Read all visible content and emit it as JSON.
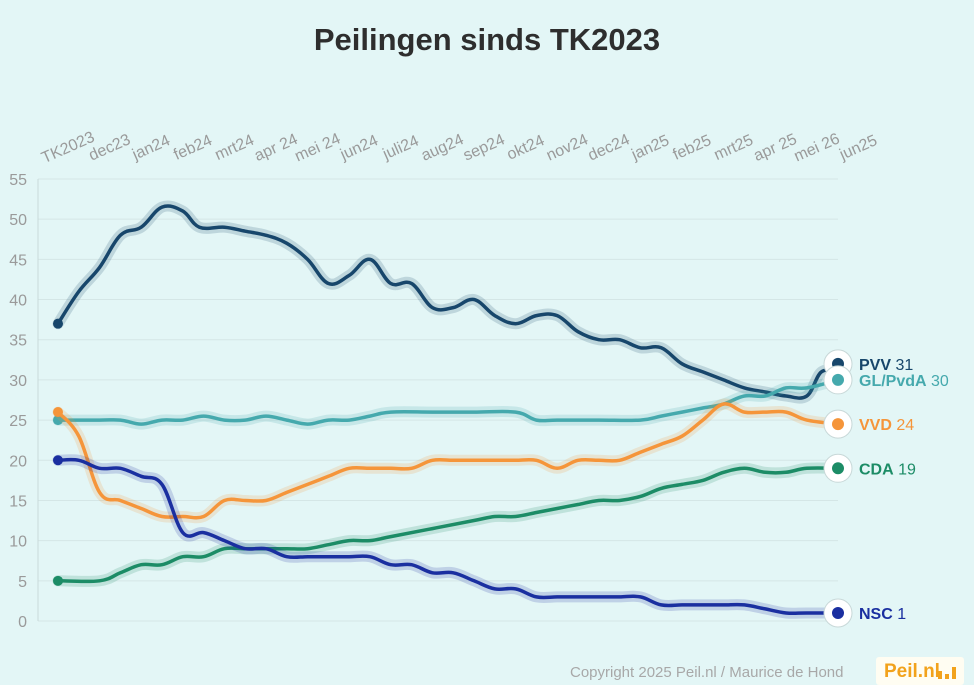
{
  "title": "Peilingen sinds TK2023",
  "copyright": "Copyright 2025 Peil.nl / Maurice de Hond",
  "brand": "Peil.nl",
  "brand_icon": "bar-chart-icon",
  "chart_data": {
    "type": "line",
    "title": "Peilingen sinds TK2023",
    "xlabel": "",
    "ylabel": "",
    "ylim": [
      0,
      55
    ],
    "yticks": [
      0,
      5,
      10,
      15,
      20,
      25,
      30,
      35,
      40,
      45,
      50,
      55
    ],
    "grid": true,
    "legend": "end-labels",
    "x_tick_labels": [
      "TK2023",
      "dec23",
      "jan24",
      "feb24",
      "mrt24",
      "apr 24",
      "mei 24",
      "jun24",
      "juli24",
      "aug24",
      "sep24",
      "okt24",
      "nov24",
      "dec24",
      "jan25",
      "feb25",
      "mrt25",
      "apr 25",
      "mei 26",
      "jun25"
    ],
    "series": [
      {
        "name": "PVV",
        "end_value": "31",
        "color": "#17466b",
        "icon": "pvv-logo-icon",
        "points": [
          [
            0,
            37
          ],
          [
            0.5,
            41
          ],
          [
            1,
            44
          ],
          [
            1.5,
            48
          ],
          [
            2,
            49
          ],
          [
            2.5,
            51.5
          ],
          [
            3,
            51
          ],
          [
            3.4,
            49
          ],
          [
            4,
            49
          ],
          [
            4.5,
            48.5
          ],
          [
            5,
            48
          ],
          [
            5.5,
            47
          ],
          [
            6,
            45
          ],
          [
            6.5,
            42
          ],
          [
            7,
            43
          ],
          [
            7.5,
            45
          ],
          [
            8,
            42
          ],
          [
            8.5,
            42
          ],
          [
            9,
            39
          ],
          [
            9.5,
            39
          ],
          [
            10,
            40
          ],
          [
            10.5,
            38
          ],
          [
            11,
            37
          ],
          [
            11.5,
            38
          ],
          [
            12,
            38
          ],
          [
            12.5,
            36
          ],
          [
            13,
            35
          ],
          [
            13.5,
            35
          ],
          [
            14,
            34
          ],
          [
            14.5,
            34
          ],
          [
            15,
            32
          ],
          [
            15.5,
            31
          ],
          [
            16,
            30
          ],
          [
            16.5,
            29
          ],
          [
            17,
            28.5
          ],
          [
            17.5,
            28
          ],
          [
            18,
            28
          ],
          [
            18.35,
            31
          ],
          [
            18.75,
            31
          ]
        ]
      },
      {
        "name": "GL/PvdA",
        "end_value": "30",
        "color": "#45a9ad",
        "icon": "glpvda-logo-icon",
        "points": [
          [
            0,
            25
          ],
          [
            1,
            25
          ],
          [
            1.5,
            25
          ],
          [
            2,
            24.5
          ],
          [
            2.5,
            25
          ],
          [
            3,
            25
          ],
          [
            3.5,
            25.5
          ],
          [
            4,
            25
          ],
          [
            4.5,
            25
          ],
          [
            5,
            25.5
          ],
          [
            5.5,
            25
          ],
          [
            6,
            24.5
          ],
          [
            6.5,
            25
          ],
          [
            7,
            25
          ],
          [
            7.5,
            25.5
          ],
          [
            8,
            26
          ],
          [
            9,
            26
          ],
          [
            10,
            26
          ],
          [
            11,
            26
          ],
          [
            11.5,
            25
          ],
          [
            12,
            25
          ],
          [
            13,
            25
          ],
          [
            14,
            25
          ],
          [
            14.5,
            25.5
          ],
          [
            15,
            26
          ],
          [
            15.5,
            26.5
          ],
          [
            16,
            27
          ],
          [
            16.5,
            28
          ],
          [
            17,
            28
          ],
          [
            17.5,
            29
          ],
          [
            18,
            29
          ],
          [
            18.75,
            30
          ]
        ]
      },
      {
        "name": "VVD",
        "end_value": "24",
        "color": "#f5953a",
        "icon": "vvd-logo-icon",
        "points": [
          [
            0,
            26
          ],
          [
            0.5,
            23
          ],
          [
            1,
            16
          ],
          [
            1.5,
            15
          ],
          [
            2,
            14
          ],
          [
            2.5,
            13
          ],
          [
            3,
            13
          ],
          [
            3.5,
            13
          ],
          [
            4,
            15
          ],
          [
            4.5,
            15
          ],
          [
            5,
            15
          ],
          [
            5.5,
            16
          ],
          [
            6,
            17
          ],
          [
            6.5,
            18
          ],
          [
            7,
            19
          ],
          [
            7.5,
            19
          ],
          [
            8,
            19
          ],
          [
            8.5,
            19
          ],
          [
            9,
            20
          ],
          [
            9.5,
            20
          ],
          [
            10,
            20
          ],
          [
            10.5,
            20
          ],
          [
            11,
            20
          ],
          [
            11.5,
            20
          ],
          [
            12,
            19
          ],
          [
            12.5,
            20
          ],
          [
            13,
            20
          ],
          [
            13.5,
            20
          ],
          [
            14,
            21
          ],
          [
            14.5,
            22
          ],
          [
            15,
            23
          ],
          [
            15.5,
            25
          ],
          [
            16,
            27
          ],
          [
            16.5,
            26
          ],
          [
            17,
            26
          ],
          [
            17.5,
            26
          ],
          [
            18,
            25
          ],
          [
            18.75,
            24.5
          ]
        ]
      },
      {
        "name": "CDA",
        "end_value": "19",
        "color": "#1c8c66",
        "icon": "cda-logo-icon",
        "points": [
          [
            0,
            5
          ],
          [
            1,
            5
          ],
          [
            1.5,
            6
          ],
          [
            2,
            7
          ],
          [
            2.5,
            7
          ],
          [
            3,
            8
          ],
          [
            3.5,
            8
          ],
          [
            4,
            9
          ],
          [
            4.5,
            9
          ],
          [
            5,
            9
          ],
          [
            5.5,
            9
          ],
          [
            6,
            9
          ],
          [
            6.5,
            9.5
          ],
          [
            7,
            10
          ],
          [
            7.5,
            10
          ],
          [
            8,
            10.5
          ],
          [
            9,
            11.5
          ],
          [
            10,
            12.5
          ],
          [
            10.5,
            13
          ],
          [
            11,
            13
          ],
          [
            11.5,
            13.5
          ],
          [
            12,
            14
          ],
          [
            12.5,
            14.5
          ],
          [
            13,
            15
          ],
          [
            13.5,
            15
          ],
          [
            14,
            15.5
          ],
          [
            14.5,
            16.5
          ],
          [
            15,
            17
          ],
          [
            15.5,
            17.5
          ],
          [
            16,
            18.5
          ],
          [
            16.5,
            19
          ],
          [
            17,
            18.5
          ],
          [
            17.5,
            18.5
          ],
          [
            18,
            19
          ],
          [
            18.75,
            19
          ]
        ]
      },
      {
        "name": "NSC",
        "end_value": "1",
        "color": "#1a2fa0",
        "icon": "nsc-logo-icon",
        "points": [
          [
            0,
            20
          ],
          [
            0.5,
            20
          ],
          [
            1,
            19
          ],
          [
            1.5,
            19
          ],
          [
            2,
            18
          ],
          [
            2.5,
            17
          ],
          [
            3,
            11
          ],
          [
            3.5,
            11
          ],
          [
            4,
            10
          ],
          [
            4.5,
            9
          ],
          [
            5,
            9
          ],
          [
            5.5,
            8
          ],
          [
            6,
            8
          ],
          [
            6.5,
            8
          ],
          [
            7,
            8
          ],
          [
            7.5,
            8
          ],
          [
            8,
            7
          ],
          [
            8.5,
            7
          ],
          [
            9,
            6
          ],
          [
            9.5,
            6
          ],
          [
            10,
            5
          ],
          [
            10.5,
            4
          ],
          [
            11,
            4
          ],
          [
            11.5,
            3
          ],
          [
            12,
            3
          ],
          [
            12.5,
            3
          ],
          [
            13,
            3
          ],
          [
            13.5,
            3
          ],
          [
            14,
            3
          ],
          [
            14.5,
            2
          ],
          [
            15,
            2
          ],
          [
            15.5,
            2
          ],
          [
            16,
            2
          ],
          [
            16.5,
            2
          ],
          [
            17,
            1.5
          ],
          [
            17.5,
            1
          ],
          [
            18,
            1
          ],
          [
            18.75,
            1
          ]
        ]
      }
    ]
  }
}
